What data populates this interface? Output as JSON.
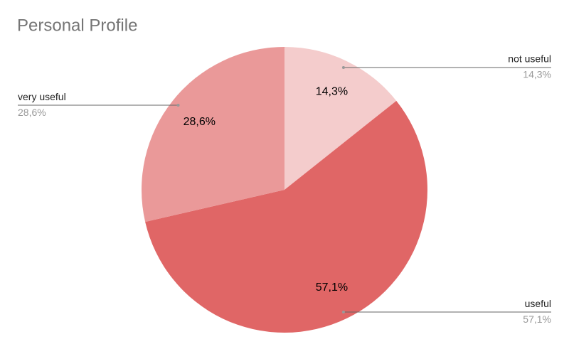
{
  "chart_data": {
    "type": "pie",
    "title": "Personal Profile",
    "categories": [
      "not useful",
      "useful",
      "very useful"
    ],
    "values": [
      14.3,
      57.1,
      28.6
    ],
    "value_labels": [
      "14,3%",
      "57,1%",
      "28,6%"
    ],
    "colors": [
      "#f4cccc",
      "#e06666",
      "#ea9999"
    ]
  }
}
